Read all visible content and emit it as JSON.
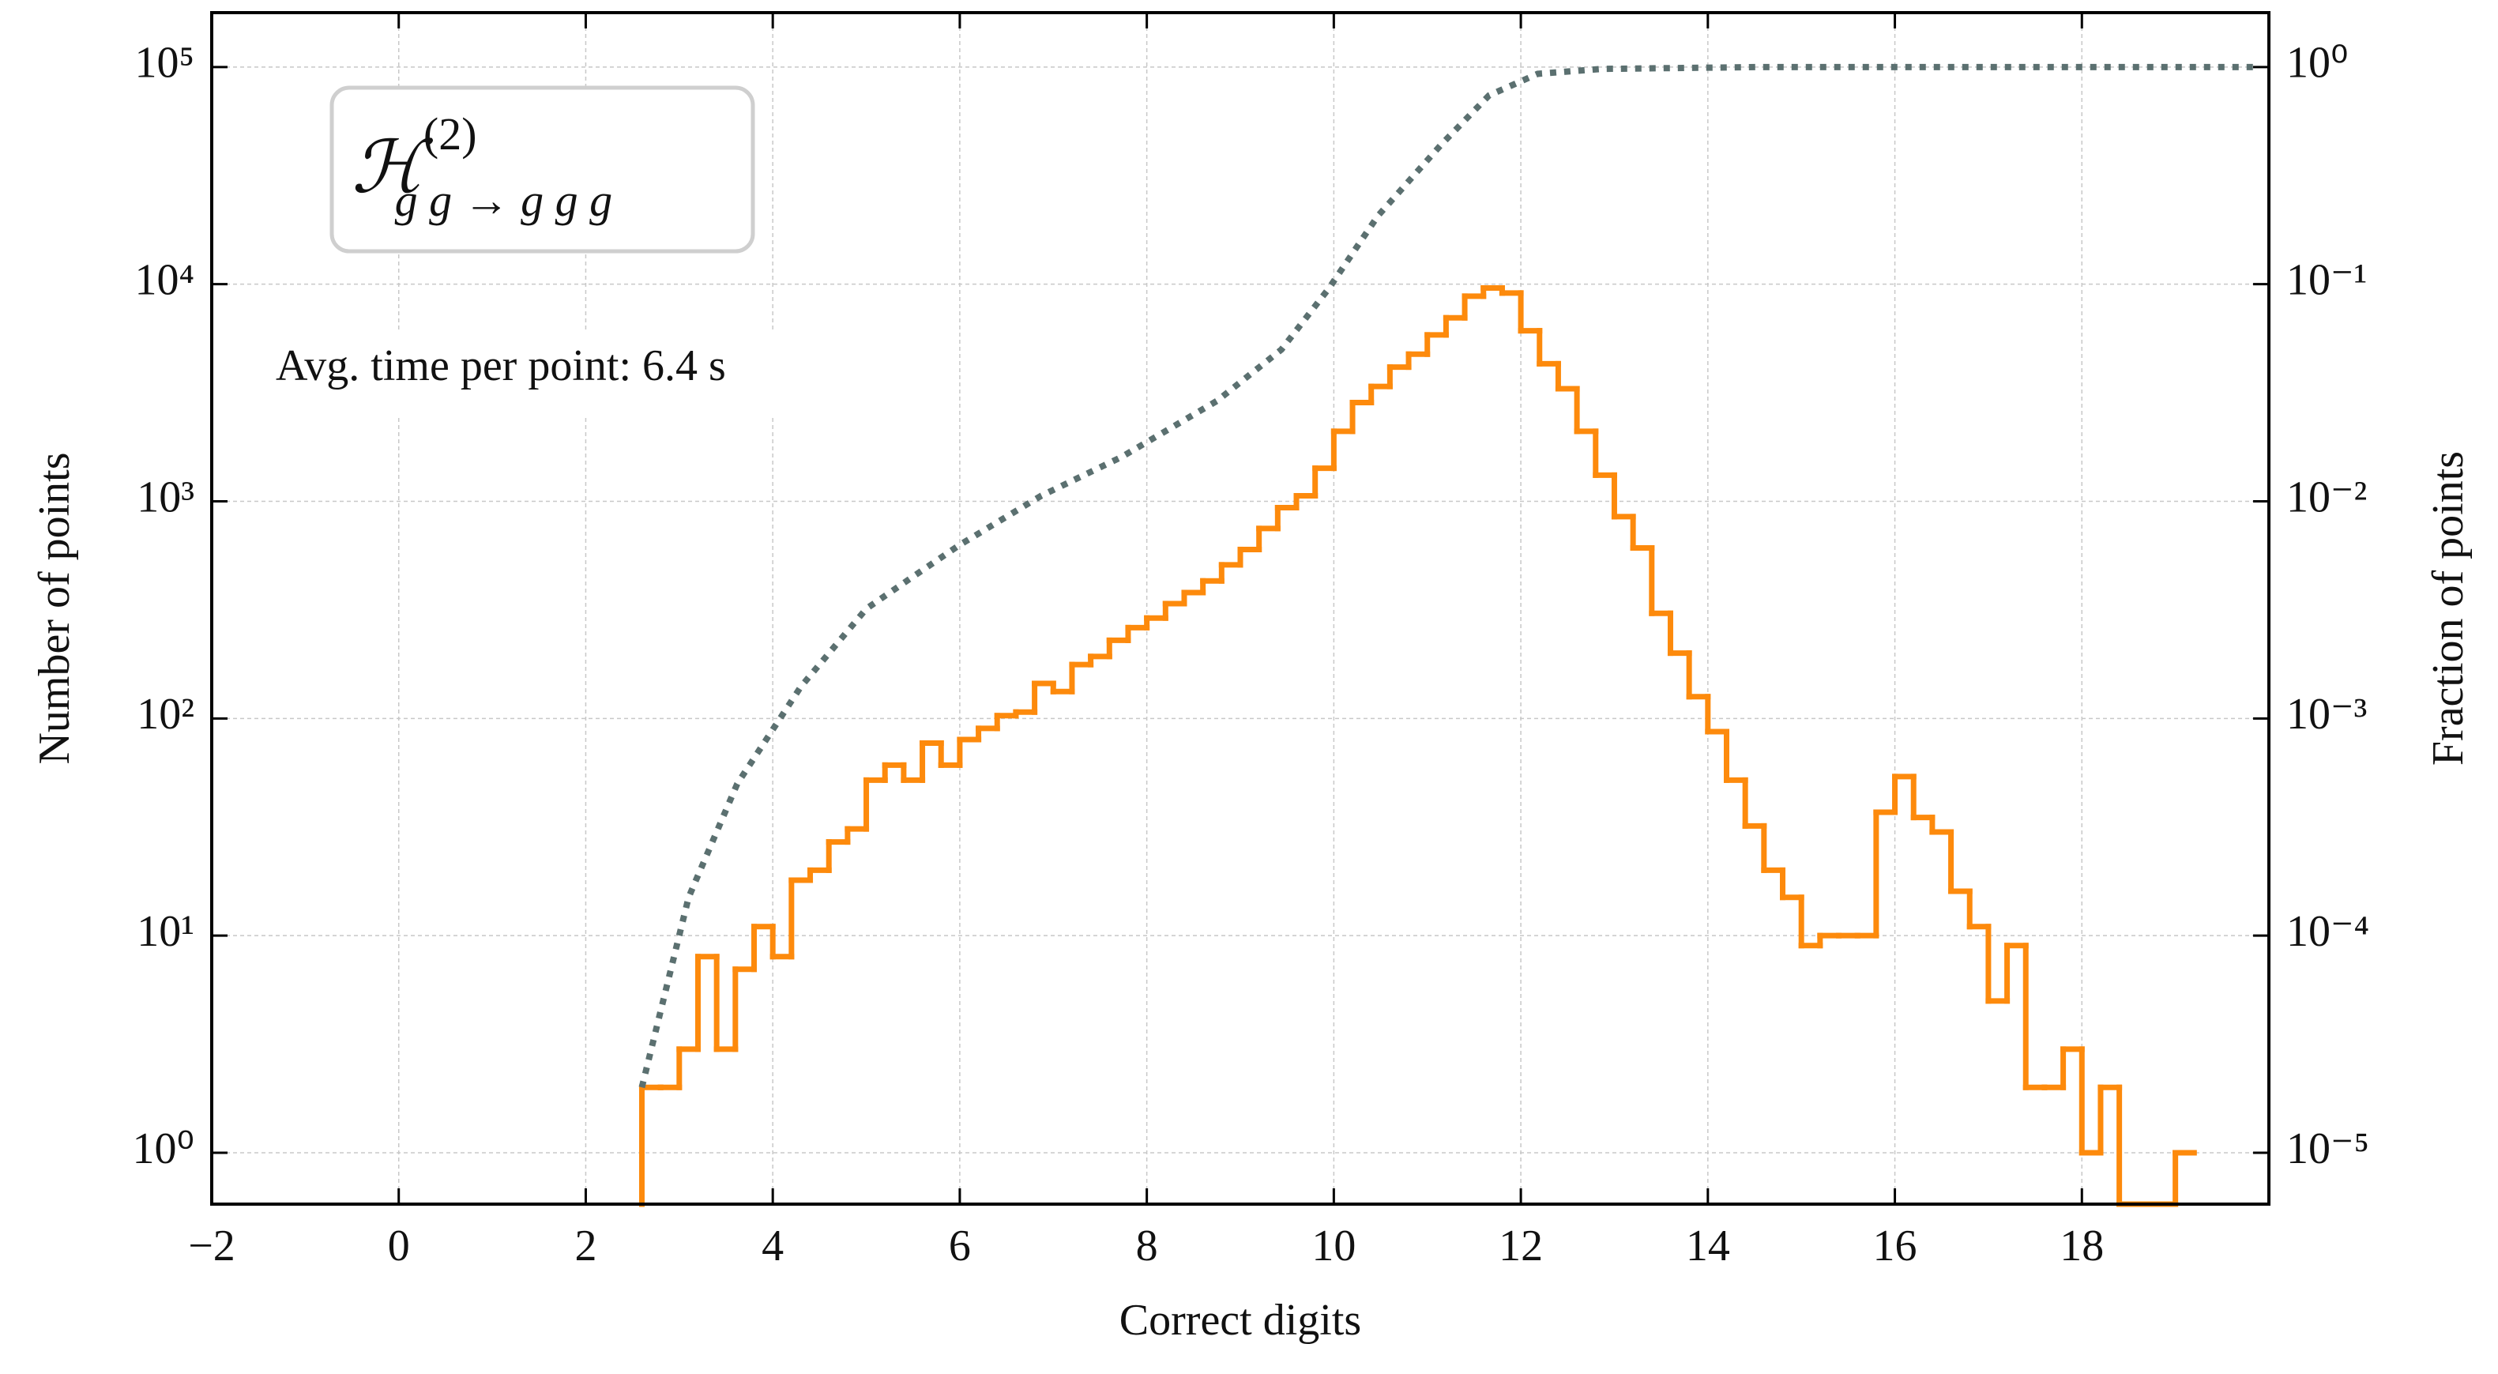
{
  "chart_data": {
    "type": "histogram",
    "xlabel": "Correct digits",
    "ylabel": "Number of points",
    "y2label": "Fraction of points",
    "xlim": [
      -2,
      20
    ],
    "xticks": [
      {
        "value": -2,
        "label": "−2"
      },
      0,
      2,
      4,
      6,
      8,
      10,
      12,
      14,
      16,
      18
    ],
    "ylim": [
      0.58,
      178000
    ],
    "ylog": true,
    "yticks": [
      {
        "value": 1,
        "label": "10⁰"
      },
      {
        "value": 10,
        "label": "10¹"
      },
      {
        "value": 100,
        "label": "10²"
      },
      {
        "value": 1000,
        "label": "10³"
      },
      {
        "value": 10000,
        "label": "10⁴"
      },
      {
        "value": 100000,
        "label": "10⁵"
      }
    ],
    "y2lim": [
      5.8e-06,
      1.78
    ],
    "y2log": true,
    "y2ticks": [
      {
        "value": 1e-05,
        "label": "10⁻⁵"
      },
      {
        "value": 0.0001,
        "label": "10⁻⁴"
      },
      {
        "value": 0.001,
        "label": "10⁻³"
      },
      {
        "value": 0.01,
        "label": "10⁻²"
      },
      {
        "value": 0.1,
        "label": "10⁻¹"
      },
      {
        "value": 1,
        "label": "10⁰"
      }
    ],
    "grid": true,
    "color": "#fd8a0c",
    "bins": [
      2.6,
      2.8,
      3.0,
      3.2,
      3.4,
      3.6,
      3.8,
      4.0,
      4.2,
      4.4,
      4.6,
      4.8,
      5.0,
      5.2,
      5.4,
      5.6,
      5.8,
      6.0,
      6.2,
      6.4,
      6.6,
      6.8,
      7.0,
      7.2,
      7.4,
      7.6,
      7.8,
      8.0,
      8.2,
      8.4,
      8.6,
      8.8,
      9.0,
      9.2,
      9.4,
      9.6,
      9.8,
      10.0,
      10.2,
      10.4,
      10.6,
      10.8,
      11.0,
      11.2,
      11.4,
      11.6,
      11.8,
      12.0,
      12.2,
      12.4,
      12.6,
      12.8,
      13.0,
      13.2,
      13.4,
      13.6,
      13.8,
      14.0,
      14.2,
      14.4,
      14.6,
      14.8,
      15.0,
      15.2,
      15.4,
      15.6,
      15.8,
      16.0,
      16.2,
      16.4,
      16.6,
      16.8,
      17.0,
      17.2,
      17.4,
      17.6,
      17.8,
      18.0,
      18.2,
      18.4,
      18.6,
      18.8,
      19.0,
      19.2
    ],
    "values": [
      2,
      2,
      3,
      8,
      3,
      7,
      11,
      8,
      18,
      20,
      27,
      31,
      52,
      61,
      52,
      77,
      61,
      80,
      90,
      103,
      107,
      145,
      133,
      177,
      193,
      229,
      262,
      290,
      338,
      380,
      430,
      510,
      600,
      750,
      935,
      1060,
      1420,
      2100,
      2850,
      3380,
      4150,
      4760,
      5840,
      7000,
      8800,
      9600,
      9100,
      6100,
      4300,
      3300,
      2100,
      1320,
      850,
      610,
      305,
      200,
      126,
      87,
      52,
      32,
      20,
      15,
      9,
      10,
      10,
      10,
      37,
      54,
      35,
      30,
      16,
      11,
      5,
      9,
      2,
      2,
      3,
      1,
      2,
      0,
      0,
      0,
      1
    ],
    "line": {
      "type": "line",
      "axis": "y2",
      "color": "#5b7070",
      "style": "dotted",
      "x": [
        2.6,
        3.1,
        3.62,
        4.3,
        5.0,
        5.5,
        6.0,
        6.87,
        7.73,
        8.75,
        9.44,
        9.95,
        10.47,
        11.15,
        11.66,
        12.18,
        12.86,
        14.58,
        19.88
      ],
      "values": [
        2e-05,
        0.00015,
        0.0005,
        0.0014,
        0.0032,
        0.0045,
        0.0063,
        0.0106,
        0.016,
        0.029,
        0.05,
        0.096,
        0.206,
        0.44,
        0.74,
        0.93,
        0.98,
        1.0,
        1.0
      ]
    },
    "label": {
      "main": "ℋ",
      "sup": "(2)",
      "sub": "g g → g g g"
    },
    "annotations": [
      {
        "text": "Avg. time per point: 6.4 s"
      }
    ]
  }
}
